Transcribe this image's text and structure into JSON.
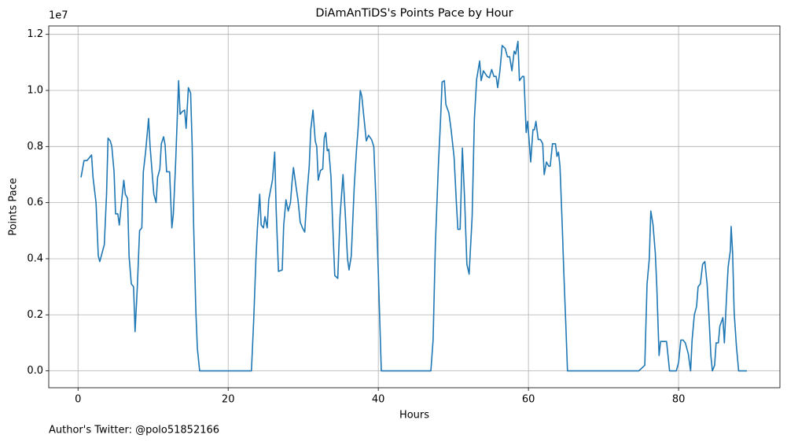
{
  "chart_data": {
    "type": "line",
    "title": "DiAmAnTiDS's Points Pace by Hour",
    "xlabel": "Hours",
    "ylabel": "Points Pace",
    "y_offset_label": "1e7",
    "footnote": "Author's Twitter: @polo51852166",
    "color": "#1f77b4",
    "grid": true,
    "xlim": [
      -3.9,
      93.5
    ],
    "ylim": [
      -0.06,
      1.23
    ],
    "xticks": [
      0,
      20,
      40,
      60,
      80
    ],
    "yticks": [
      {
        "value": 0,
        "label": "0.0"
      },
      {
        "value": 0.2,
        "label": "0.2"
      },
      {
        "value": 0.4,
        "label": "0.4"
      },
      {
        "value": 0.6,
        "label": "0.6"
      },
      {
        "value": 0.8,
        "label": "0.8"
      },
      {
        "value": 1.0,
        "label": "1.0"
      },
      {
        "value": 1.2,
        "label": "1.2"
      }
    ],
    "x": [
      0.4,
      0.8,
      1.2,
      1.5,
      1.8,
      2.0,
      2.4,
      2.7,
      2.9,
      3.5,
      3.8,
      4.0,
      4.3,
      4.5,
      4.8,
      5.0,
      5.3,
      5.5,
      5.9,
      6.1,
      6.3,
      6.6,
      6.8,
      7.1,
      7.4,
      7.6,
      7.9,
      8.2,
      8.5,
      8.7,
      9.0,
      9.4,
      9.6,
      10.1,
      10.4,
      10.6,
      10.9,
      11.1,
      11.4,
      11.6,
      11.8,
      12.2,
      12.5,
      12.7,
      13.0,
      13.4,
      13.6,
      13.9,
      14.2,
      14.4,
      14.7,
      15.0,
      15.2,
      15.4,
      15.7,
      15.9,
      16.2,
      23.1,
      23.4,
      23.7,
      23.9,
      24.2,
      24.4,
      24.7,
      24.9,
      25.2,
      25.4,
      25.9,
      26.2,
      26.4,
      26.7,
      27.2,
      27.4,
      27.7,
      28.0,
      28.3,
      28.5,
      28.7,
      29.0,
      29.3,
      29.6,
      29.9,
      30.2,
      30.5,
      30.8,
      31.0,
      31.3,
      31.6,
      31.8,
      32.0,
      32.3,
      32.6,
      32.8,
      33.0,
      33.2,
      33.4,
      33.7,
      33.9,
      34.2,
      34.6,
      34.9,
      35.3,
      35.6,
      35.9,
      36.1,
      36.4,
      36.8,
      37.1,
      37.3,
      37.6,
      37.8,
      38.1,
      38.4,
      38.7,
      39.1,
      39.4,
      39.7,
      40.0,
      40.4,
      47.0,
      47.3,
      47.6,
      48.0,
      48.3,
      48.5,
      48.8,
      49.0,
      49.4,
      49.7,
      50.1,
      50.4,
      50.6,
      50.9,
      51.2,
      51.5,
      51.8,
      52.1,
      52.5,
      52.8,
      53.1,
      53.5,
      53.7,
      54.0,
      54.5,
      54.8,
      55.1,
      55.4,
      55.7,
      55.9,
      56.2,
      56.5,
      56.9,
      57.2,
      57.5,
      57.8,
      58.1,
      58.3,
      58.6,
      58.8,
      59.2,
      59.4,
      59.7,
      59.9,
      60.3,
      60.6,
      60.8,
      61.0,
      61.3,
      61.6,
      61.9,
      62.1,
      62.4,
      62.7,
      62.9,
      63.2,
      63.6,
      63.8,
      64.0,
      64.2,
      64.5,
      64.7,
      65.0,
      65.2,
      74.7,
      75.5,
      75.8,
      76.1,
      76.3,
      76.6,
      76.9,
      77.1,
      77.4,
      77.6,
      77.9,
      78.4,
      78.8,
      79.4,
      79.7,
      80.0,
      80.3,
      80.6,
      80.9,
      81.3,
      81.6,
      81.8,
      82.1,
      82.4,
      82.6,
      82.9,
      83.2,
      83.5,
      83.8,
      84.0,
      84.3,
      84.5,
      84.8,
      85.0,
      85.3,
      85.5,
      85.9,
      86.1,
      86.4,
      86.6,
      86.9,
      87.0,
      87.2,
      87.4,
      87.7,
      88.0,
      89.1
    ],
    "values": [
      0.69,
      0.75,
      0.75,
      0.76,
      0.77,
      0.69,
      0.6,
      0.41,
      0.39,
      0.45,
      0.63,
      0.83,
      0.82,
      0.8,
      0.71,
      0.56,
      0.56,
      0.52,
      0.63,
      0.68,
      0.63,
      0.615,
      0.41,
      0.31,
      0.3,
      0.14,
      0.3,
      0.5,
      0.51,
      0.71,
      0.78,
      0.9,
      0.8,
      0.63,
      0.6,
      0.69,
      0.72,
      0.81,
      0.835,
      0.805,
      0.71,
      0.71,
      0.51,
      0.56,
      0.74,
      1.035,
      0.915,
      0.925,
      0.93,
      0.865,
      1.01,
      0.99,
      0.81,
      0.52,
      0.21,
      0.08,
      0.0,
      0.0,
      0.18,
      0.4,
      0.51,
      0.63,
      0.52,
      0.51,
      0.55,
      0.51,
      0.61,
      0.68,
      0.78,
      0.57,
      0.355,
      0.36,
      0.52,
      0.61,
      0.57,
      0.6,
      0.67,
      0.725,
      0.665,
      0.61,
      0.53,
      0.51,
      0.495,
      0.63,
      0.73,
      0.86,
      0.93,
      0.82,
      0.8,
      0.68,
      0.715,
      0.72,
      0.83,
      0.85,
      0.785,
      0.79,
      0.69,
      0.54,
      0.34,
      0.33,
      0.55,
      0.7,
      0.56,
      0.4,
      0.36,
      0.41,
      0.66,
      0.79,
      0.86,
      1.0,
      0.98,
      0.9,
      0.82,
      0.84,
      0.825,
      0.8,
      0.6,
      0.35,
      0.0,
      0.0,
      0.11,
      0.45,
      0.73,
      0.9,
      1.03,
      1.035,
      0.95,
      0.92,
      0.86,
      0.76,
      0.6,
      0.505,
      0.505,
      0.795,
      0.61,
      0.38,
      0.345,
      0.55,
      0.9,
      1.04,
      1.105,
      1.035,
      1.07,
      1.05,
      1.045,
      1.075,
      1.05,
      1.05,
      1.01,
      1.07,
      1.16,
      1.15,
      1.12,
      1.12,
      1.07,
      1.14,
      1.13,
      1.175,
      1.035,
      1.05,
      1.05,
      0.85,
      0.89,
      0.745,
      0.86,
      0.86,
      0.89,
      0.825,
      0.825,
      0.81,
      0.7,
      0.745,
      0.73,
      0.73,
      0.81,
      0.81,
      0.765,
      0.78,
      0.73,
      0.52,
      0.36,
      0.15,
      0.0,
      0.0,
      0.02,
      0.31,
      0.4,
      0.57,
      0.52,
      0.42,
      0.3,
      0.055,
      0.105,
      0.105,
      0.105,
      0.0,
      0.0,
      0.0,
      0.03,
      0.11,
      0.11,
      0.1,
      0.06,
      0.0,
      0.11,
      0.2,
      0.23,
      0.3,
      0.31,
      0.38,
      0.39,
      0.31,
      0.22,
      0.055,
      0.0,
      0.02,
      0.1,
      0.1,
      0.16,
      0.19,
      0.1,
      0.27,
      0.37,
      0.43,
      0.515,
      0.42,
      0.21,
      0.09,
      0.0,
      0.0
    ]
  }
}
